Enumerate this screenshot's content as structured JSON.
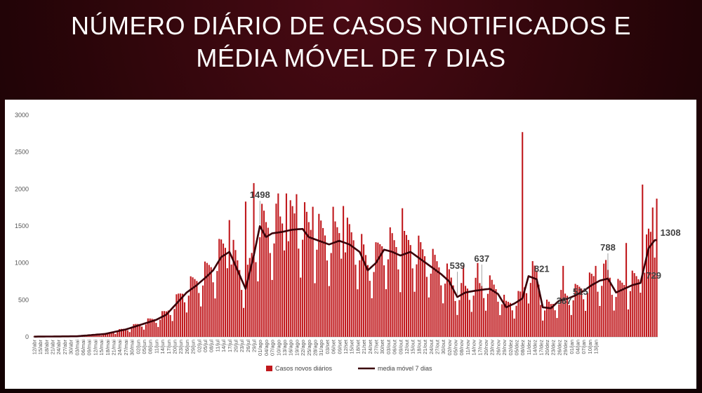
{
  "title": {
    "line1": "NÚMERO DIÁRIO DE CASOS NOTIFICADOS E",
    "line2": "MÉDIA MÓVEL DE 7 DIAS"
  },
  "colors": {
    "bar": "#c0181c",
    "line": "#3a0008",
    "background": "#2a0509",
    "panel": "#ffffff"
  },
  "chart_data": {
    "type": "bar",
    "ylim": [
      0,
      3000
    ],
    "yticks": [
      0,
      500,
      1000,
      1500,
      2000,
      2500,
      3000
    ],
    "grid": false,
    "legend_position": "bottom",
    "series": [
      {
        "name": "Casos novos diários",
        "type": "bar"
      },
      {
        "name": "media móvel 7 dias",
        "type": "line"
      }
    ],
    "x_tick_labels": [
      "12/abr",
      "15/abr",
      "18/abr",
      "21/abr",
      "24/abr",
      "27/abr",
      "30/abr",
      "03/mai",
      "06/mai",
      "09/mai",
      "12/mai",
      "15/mai",
      "18/mai",
      "21/mai",
      "24/mai",
      "27/mai",
      "30/mai",
      "02/jun",
      "05/jun",
      "08/jun",
      "11/jun",
      "14/jun",
      "17/jun",
      "20/jun",
      "23/jun",
      "26/jun",
      "29/jun",
      "02/jul",
      "05/jul",
      "08/jul",
      "11/jul",
      "14/jul",
      "17/jul",
      "20/jul",
      "23/jul",
      "26/jul",
      "29/jul",
      "01/ago",
      "04/ago",
      "07/ago",
      "10/ago",
      "13/ago",
      "16/ago",
      "19/ago",
      "22/ago",
      "25/ago",
      "28/ago",
      "31/ago",
      "03/set",
      "06/set",
      "09/set",
      "12/set",
      "15/set",
      "18/set",
      "21/set",
      "24/set",
      "27/set",
      "30/set",
      "03/out",
      "06/out",
      "09/out",
      "12/out",
      "15/out",
      "18/out",
      "21/out",
      "24/out",
      "27/out",
      "30/out",
      "02/nov",
      "05/nov",
      "08/nov",
      "11/nov",
      "14/nov",
      "17/nov",
      "20/nov",
      "23/nov",
      "26/nov",
      "29/nov",
      "02/dez",
      "05/dez",
      "08/dez",
      "11/dez",
      "14/dez",
      "17/dez",
      "20/dez",
      "23/dez",
      "26/dez",
      "29/dez",
      "01/jan",
      "04/jan",
      "07/jan",
      "10/jan",
      "13/jan"
    ],
    "moving_average_anchors": [
      {
        "day": 0,
        "value": 3
      },
      {
        "day": 21,
        "value": 8
      },
      {
        "day": 35,
        "value": 40
      },
      {
        "day": 45,
        "value": 100
      },
      {
        "day": 52,
        "value": 160
      },
      {
        "day": 60,
        "value": 230
      },
      {
        "day": 65,
        "value": 300
      },
      {
        "day": 70,
        "value": 450
      },
      {
        "day": 75,
        "value": 600
      },
      {
        "day": 80,
        "value": 700
      },
      {
        "day": 85,
        "value": 820
      },
      {
        "day": 88,
        "value": 900
      },
      {
        "day": 92,
        "value": 1080
      },
      {
        "day": 96,
        "value": 1150
      },
      {
        "day": 100,
        "value": 900
      },
      {
        "day": 104,
        "value": 650
      },
      {
        "day": 108,
        "value": 1100
      },
      {
        "day": 111,
        "value": 1498
      },
      {
        "day": 114,
        "value": 1350
      },
      {
        "day": 117,
        "value": 1400
      },
      {
        "day": 122,
        "value": 1420
      },
      {
        "day": 127,
        "value": 1450
      },
      {
        "day": 132,
        "value": 1460
      },
      {
        "day": 135,
        "value": 1350
      },
      {
        "day": 140,
        "value": 1300
      },
      {
        "day": 145,
        "value": 1250
      },
      {
        "day": 150,
        "value": 1300
      },
      {
        "day": 155,
        "value": 1250
      },
      {
        "day": 160,
        "value": 1150
      },
      {
        "day": 164,
        "value": 900
      },
      {
        "day": 168,
        "value": 1000
      },
      {
        "day": 172,
        "value": 1180
      },
      {
        "day": 176,
        "value": 1150
      },
      {
        "day": 180,
        "value": 1100
      },
      {
        "day": 185,
        "value": 1150
      },
      {
        "day": 190,
        "value": 1050
      },
      {
        "day": 195,
        "value": 950
      },
      {
        "day": 200,
        "value": 850
      },
      {
        "day": 204,
        "value": 750
      },
      {
        "day": 208,
        "value": 539
      },
      {
        "day": 212,
        "value": 600
      },
      {
        "day": 216,
        "value": 620
      },
      {
        "day": 220,
        "value": 637
      },
      {
        "day": 224,
        "value": 650
      },
      {
        "day": 228,
        "value": 580
      },
      {
        "day": 232,
        "value": 400
      },
      {
        "day": 236,
        "value": 450
      },
      {
        "day": 240,
        "value": 520
      },
      {
        "day": 243,
        "value": 821
      },
      {
        "day": 247,
        "value": 780
      },
      {
        "day": 250,
        "value": 400
      },
      {
        "day": 254,
        "value": 387
      },
      {
        "day": 258,
        "value": 490
      },
      {
        "day": 262,
        "value": 515
      },
      {
        "day": 266,
        "value": 560
      },
      {
        "day": 270,
        "value": 620
      },
      {
        "day": 274,
        "value": 700
      },
      {
        "day": 278,
        "value": 760
      },
      {
        "day": 282,
        "value": 788
      },
      {
        "day": 286,
        "value": 600
      },
      {
        "day": 290,
        "value": 650
      },
      {
        "day": 294,
        "value": 700
      },
      {
        "day": 298,
        "value": 729
      },
      {
        "day": 302,
        "value": 1200
      },
      {
        "day": 305,
        "value": 1308
      }
    ],
    "bar_spikes": [
      {
        "day": 96,
        "value": 1580
      },
      {
        "day": 104,
        "value": 1830
      },
      {
        "day": 108,
        "value": 2080
      },
      {
        "day": 112,
        "value": 1800
      },
      {
        "day": 120,
        "value": 1940
      },
      {
        "day": 124,
        "value": 1940
      },
      {
        "day": 129,
        "value": 1930
      },
      {
        "day": 137,
        "value": 1760
      },
      {
        "day": 147,
        "value": 1760
      },
      {
        "day": 152,
        "value": 1770
      },
      {
        "day": 181,
        "value": 1740
      },
      {
        "day": 211,
        "value": 960
      },
      {
        "day": 218,
        "value": 1000
      },
      {
        "day": 240,
        "value": 2770
      },
      {
        "day": 260,
        "value": 960
      },
      {
        "day": 276,
        "value": 960
      },
      {
        "day": 281,
        "value": 1040
      },
      {
        "day": 291,
        "value": 1270
      },
      {
        "day": 299,
        "value": 2060
      },
      {
        "day": 304,
        "value": 1750
      },
      {
        "day": 306,
        "value": 1870
      }
    ],
    "callouts": [
      {
        "label": "1498",
        "day": 111,
        "value": 1498,
        "position": "above"
      },
      {
        "label": "539",
        "day": 208,
        "value": 539,
        "position": "above"
      },
      {
        "label": "637",
        "day": 220,
        "value": 637,
        "position": "above"
      },
      {
        "label": "821",
        "day": 243,
        "value": 821,
        "position": "right"
      },
      {
        "label": "387",
        "day": 254,
        "value": 387,
        "position": "right"
      },
      {
        "label": "515",
        "day": 262,
        "value": 515,
        "position": "right"
      },
      {
        "label": "788",
        "day": 282,
        "value": 788,
        "position": "above"
      },
      {
        "label": "729",
        "day": 298,
        "value": 729,
        "position": "right"
      },
      {
        "label": "1308",
        "day": 305,
        "value": 1308,
        "position": "right"
      }
    ]
  }
}
